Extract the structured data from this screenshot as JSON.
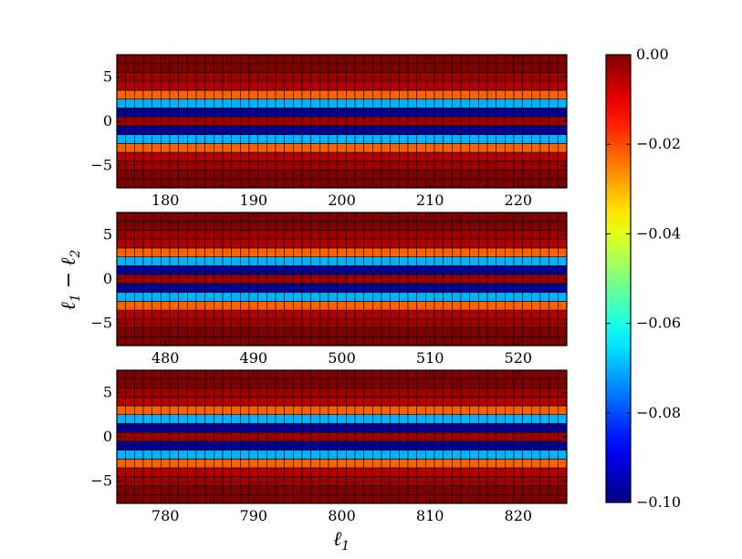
{
  "chart_data": {
    "type": "heatmap",
    "colormap": "jet",
    "xlabel_main": "ℓ",
    "xlabel_sub": "1",
    "ylabel_main": "ℓ",
    "ylabel_sub1": "1",
    "ylabel_minus": "−",
    "ylabel_sub2": "2",
    "yticks": [
      -5,
      0,
      5
    ],
    "y_cells": [
      -7,
      -6,
      -5,
      -4,
      -3,
      -2,
      -1,
      0,
      1,
      2,
      3,
      4,
      5,
      6,
      7
    ],
    "row_profile": [
      0.0,
      0.0,
      -0.003,
      -0.005,
      -0.022,
      -0.07,
      -0.098,
      -0.003,
      -0.098,
      -0.07,
      -0.022,
      -0.005,
      -0.003,
      0.0,
      0.0
    ],
    "panels": [
      {
        "xlim": [
          174.5,
          225.5
        ],
        "xticks": [
          180,
          190,
          200,
          210,
          220
        ],
        "ylim": [
          -7.5,
          7.5
        ]
      },
      {
        "xlim": [
          474.5,
          525.5
        ],
        "xticks": [
          480,
          490,
          500,
          510,
          520
        ],
        "ylim": [
          -7.5,
          7.5
        ]
      },
      {
        "xlim": [
          774.5,
          825.5
        ],
        "xticks": [
          780,
          790,
          800,
          810,
          820
        ],
        "ylim": [
          -7.5,
          7.5
        ]
      }
    ],
    "colorbar": {
      "range": [
        -0.1,
        0.0
      ],
      "ticks": [
        0.0,
        -0.02,
        -0.04,
        -0.06,
        -0.08,
        -0.1
      ],
      "tick_labels": [
        "0.00",
        "−0.02",
        "−0.04",
        "−0.06",
        "−0.08",
        "−0.10"
      ]
    }
  }
}
